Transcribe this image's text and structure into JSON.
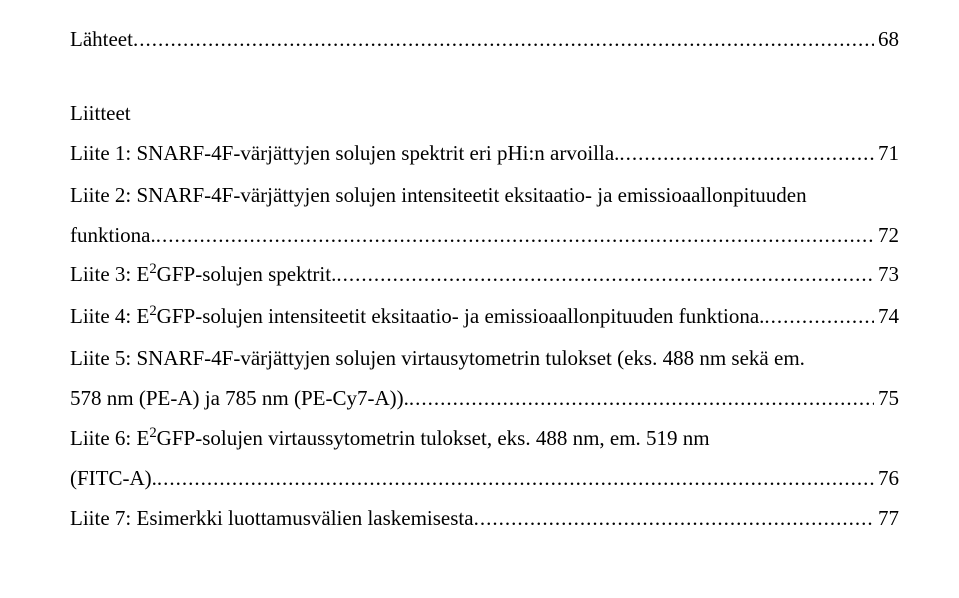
{
  "toc": {
    "lahteet": {
      "label": "Lähteet",
      "page": "68"
    },
    "liitteet_label": "Liitteet",
    "liite1": {
      "label": "Liite 1: SNARF-4F-värjättyjen solujen spektrit eri pHi:n arvoilla.",
      "page": "71"
    },
    "liite2": {
      "label_l1": "Liite 2: SNARF-4F-värjättyjen solujen intensiteetit eksitaatio- ja emissioaallonpituuden",
      "label_l2": "funktiona.",
      "page": "72"
    },
    "liite3": {
      "prefix": "Liite 3: E",
      "sup": "2",
      "suffix": "GFP-solujen spektrit.",
      "page": "73"
    },
    "liite4": {
      "prefix": "Liite 4: E",
      "sup": "2",
      "suffix": "GFP-solujen intensiteetit eksitaatio- ja emissioaallonpituuden funktiona.",
      "page": "74"
    },
    "liite5": {
      "label_l1": "Liite 5: SNARF-4F-värjättyjen solujen virtausytometrin tulokset (eks. 488 nm sekä em.",
      "label_l2": "578 nm (PE-A) ja 785 nm (PE-Cy7-A)).",
      "page": "75"
    },
    "liite6": {
      "prefix": "Liite 6: E",
      "sup": "2",
      "suffix_l1": "GFP-solujen virtaussytometrin tulokset, eks. 488 nm, em. 519 nm",
      "label_l2": "(FITC-A).",
      "page": "76"
    },
    "liite7": {
      "label": "Liite 7: Esimerkki luottamusvälien laskemisesta",
      "page": "77"
    }
  }
}
